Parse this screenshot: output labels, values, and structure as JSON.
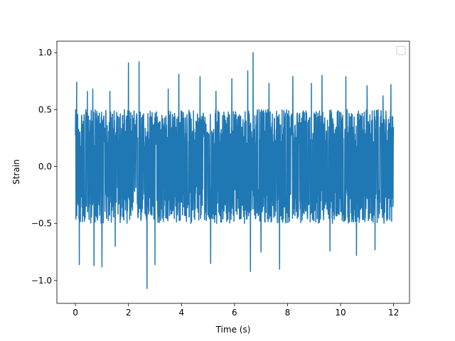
{
  "chart_data": {
    "type": "line",
    "title": "",
    "xlabel": "Time (s)",
    "ylabel": "Strain",
    "xlim": [
      -0.7,
      12.6
    ],
    "ylim": [
      -1.2,
      1.1
    ],
    "xticks": [
      0,
      2,
      4,
      6,
      8,
      10,
      12
    ],
    "yticks": [
      -1.0,
      -0.5,
      0.0,
      0.5,
      1.0
    ],
    "xtick_labels": [
      "0",
      "2",
      "4",
      "6",
      "8",
      "10",
      "12"
    ],
    "ytick_labels": [
      "−1.0",
      "−0.5",
      "0.0",
      "0.5",
      "1.0"
    ],
    "grid": false,
    "legend": {
      "placement": "top-right",
      "entries": []
    },
    "colors": {
      "series": "#1f77b4",
      "axes": "#000000",
      "background": "#ffffff"
    },
    "series": [
      {
        "description": "dense noise-like strain signal from t=0 to t=12 s, amplitude mostly within about -0.5 to 0.5",
        "t_start": 0.0,
        "t_end": 12.0,
        "typical_range": [
          -0.5,
          0.5
        ],
        "peaks": [
          {
            "x": 0.05,
            "y": 0.74
          },
          {
            "x": 0.15,
            "y": -0.86
          },
          {
            "x": 0.45,
            "y": 0.66
          },
          {
            "x": 0.65,
            "y": 0.68
          },
          {
            "x": 0.7,
            "y": -0.87
          },
          {
            "x": 1.0,
            "y": -0.88
          },
          {
            "x": 1.3,
            "y": 0.66
          },
          {
            "x": 1.5,
            "y": -0.7
          },
          {
            "x": 2.0,
            "y": 0.91
          },
          {
            "x": 2.4,
            "y": 0.92
          },
          {
            "x": 2.7,
            "y": -1.07
          },
          {
            "x": 3.0,
            "y": -0.86
          },
          {
            "x": 3.5,
            "y": 0.68
          },
          {
            "x": 3.9,
            "y": 0.81
          },
          {
            "x": 4.7,
            "y": 0.79
          },
          {
            "x": 5.1,
            "y": -0.85
          },
          {
            "x": 5.3,
            "y": 0.66
          },
          {
            "x": 5.9,
            "y": 0.77
          },
          {
            "x": 6.5,
            "y": 0.84
          },
          {
            "x": 6.6,
            "y": -0.92
          },
          {
            "x": 6.7,
            "y": 1.0
          },
          {
            "x": 7.0,
            "y": -0.75
          },
          {
            "x": 7.3,
            "y": 0.73
          },
          {
            "x": 7.7,
            "y": -0.9
          },
          {
            "x": 8.2,
            "y": 0.79
          },
          {
            "x": 8.9,
            "y": 0.73
          },
          {
            "x": 9.3,
            "y": 0.8
          },
          {
            "x": 9.6,
            "y": -0.74
          },
          {
            "x": 10.2,
            "y": 0.79
          },
          {
            "x": 10.6,
            "y": -0.78
          },
          {
            "x": 11.0,
            "y": 0.71
          },
          {
            "x": 11.3,
            "y": -0.73
          },
          {
            "x": 11.6,
            "y": 0.62
          },
          {
            "x": 11.9,
            "y": 0.72
          }
        ]
      }
    ]
  }
}
